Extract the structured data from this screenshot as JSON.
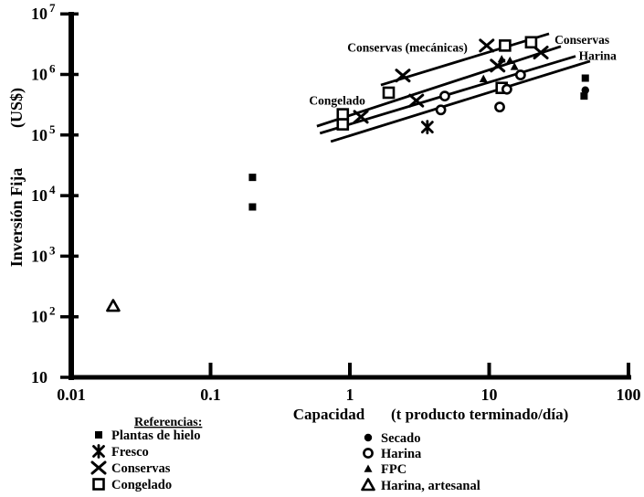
{
  "colors": {
    "ink": "#000000",
    "background": "#ffffff"
  },
  "chart_data": {
    "type": "scatter",
    "title": "",
    "log_x": true,
    "log_y": true,
    "xlim": [
      0.01,
      100
    ],
    "ylim": [
      10,
      10000000
    ],
    "grid": false,
    "xlabel": {
      "word": "Capacidad",
      "unit": "(t producto terminado/día)"
    },
    "ylabel": {
      "word": "Inversión Fija",
      "unit": "(US$)"
    },
    "x_ticks": [
      {
        "value": 0.01,
        "label": "0.01"
      },
      {
        "value": 0.1,
        "label": "0.1"
      },
      {
        "value": 1,
        "label": "1"
      },
      {
        "value": 10,
        "label": "10"
      },
      {
        "value": 100,
        "label": "100"
      }
    ],
    "y_ticks": [
      {
        "value": 10000000,
        "base": "10",
        "exp": "7"
      },
      {
        "value": 1000000,
        "base": "10",
        "exp": "6"
      },
      {
        "value": 100000,
        "base": "10",
        "exp": "5"
      },
      {
        "value": 10000,
        "base": "10",
        "exp": "4"
      },
      {
        "value": 1000,
        "base": "10",
        "exp": "3"
      },
      {
        "value": 100,
        "base": "10",
        "exp": "2"
      },
      {
        "value": 10,
        "base": "10",
        "exp": ""
      }
    ],
    "series": [
      {
        "name": "Plantas de hielo",
        "marker": "filled-square",
        "points": [
          [
            0.2,
            20000
          ],
          [
            0.2,
            6500
          ],
          [
            49,
            870000
          ],
          [
            48,
            440000
          ]
        ]
      },
      {
        "name": "Fresco",
        "marker": "asterisk",
        "points": [
          [
            3.6,
            135000
          ]
        ]
      },
      {
        "name": "Conservas",
        "marker": "x-cross",
        "points": [
          [
            2.4,
            960000
          ],
          [
            9.6,
            3000000
          ],
          [
            23.5,
            2300000
          ],
          [
            11.5,
            1400000
          ],
          [
            3.0,
            370000
          ],
          [
            1.2,
            200000
          ]
        ]
      },
      {
        "name": "Congelado",
        "marker": "open-square",
        "points": [
          [
            0.89,
            220000
          ],
          [
            0.89,
            150000
          ],
          [
            1.9,
            500000
          ],
          [
            12.3,
            600000
          ],
          [
            13,
            3000000
          ],
          [
            20,
            3400000
          ]
        ]
      },
      {
        "name": "Secado",
        "marker": "filled-circle",
        "points": [
          [
            49,
            550000
          ]
        ]
      },
      {
        "name": "Harina",
        "marker": "open-circle",
        "points": [
          [
            4.8,
            440000
          ],
          [
            4.5,
            260000
          ],
          [
            16.8,
            980000
          ],
          [
            13.4,
            570000
          ],
          [
            11.9,
            290000
          ]
        ]
      },
      {
        "name": "FPC",
        "marker": "filled-triangle",
        "points": [
          [
            12.3,
            1800000
          ],
          [
            14.1,
            1700000
          ],
          [
            9.1,
            850000
          ],
          [
            15.2,
            1350000
          ]
        ]
      },
      {
        "name": "Harina, artesanal",
        "marker": "open-triangle",
        "points": [
          [
            0.02,
            150
          ]
        ]
      }
    ],
    "trend_lines": [
      {
        "name": "Conservas (mecánicas)",
        "x1": 1.67,
        "y1": 670000,
        "x2": 26.9,
        "y2": 4700000
      },
      {
        "name": "Conservas",
        "x1": 0.58,
        "y1": 140000,
        "x2": 32.7,
        "y2": 2900000
      },
      {
        "name": "Congelado",
        "x1": 0.61,
        "y1": 107000,
        "x2": 41.7,
        "y2": 2000000
      },
      {
        "name": "Harina",
        "x1": 0.73,
        "y1": 78000,
        "x2": 53,
        "y2": 1660000
      }
    ],
    "annotations": [
      {
        "text": "Conservas (mecánicas)",
        "x": 7.0,
        "y": 2400000,
        "anchor": "end"
      },
      {
        "text": "Congelado",
        "x": 0.51,
        "y": 320000,
        "anchor": "start"
      },
      {
        "text": "Conservas",
        "x": 29.5,
        "y": 3200000,
        "anchor": "start"
      },
      {
        "text": "Harina",
        "x": 44,
        "y": 1750000,
        "anchor": "start"
      }
    ],
    "legend_position": "bottom"
  },
  "legend": {
    "title": "Referencias:",
    "columns": [
      {
        "items": [
          {
            "label": "Plantas de hielo",
            "marker": "filled-square"
          },
          {
            "label": "Fresco",
            "marker": "asterisk"
          },
          {
            "label": "Conservas",
            "marker": "x-cross"
          },
          {
            "label": "Congelado",
            "marker": "open-square"
          }
        ]
      },
      {
        "items": [
          {
            "label": "Secado",
            "marker": "filled-circle"
          },
          {
            "label": "Harina",
            "marker": "open-circle"
          },
          {
            "label": "FPC",
            "marker": "filled-triangle"
          },
          {
            "label": "Harina, artesanal",
            "marker": "open-triangle"
          }
        ]
      }
    ]
  }
}
